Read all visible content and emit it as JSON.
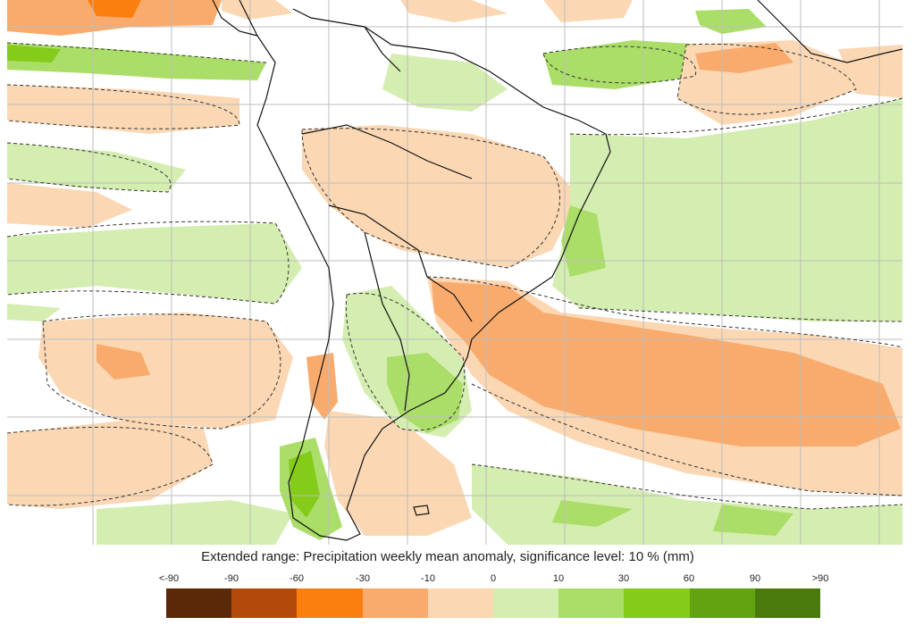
{
  "map": {
    "caption": "Extended range: Precipitation weekly mean anomaly, significance level: 10 % (mm)",
    "legend": {
      "ticks": [
        "<-90",
        "-90",
        "-60",
        "-30",
        "-10",
        "0",
        "10",
        "30",
        "60",
        "90",
        ">90"
      ],
      "colors": [
        "#5a2a08",
        "#b24a0c",
        "#fb7f0f",
        "#f9ab6d",
        "#fbd7b3",
        "#d4edb0",
        "#abde68",
        "#84cb1a",
        "#63a210",
        "#4a7a0c"
      ],
      "labels": [
        "< -90",
        "-90 to -60",
        "-60 to -30",
        "-30 to -10",
        "-10 to 0",
        "0 to 10",
        "10 to 30",
        "30 to 60",
        "60 to 90",
        "> 90"
      ]
    }
  }
}
